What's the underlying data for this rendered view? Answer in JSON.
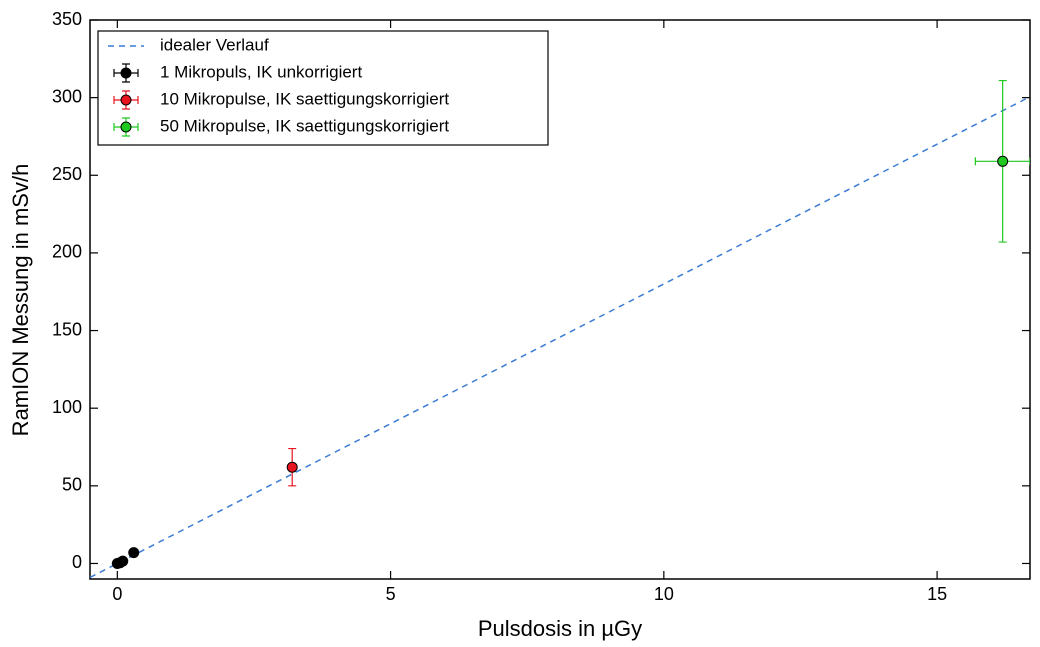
{
  "chart_data": {
    "type": "scatter",
    "x_label": "Pulsdosis in µGy",
    "y_label": "RamION Messung in mSv/h",
    "xlim": [
      -0.5,
      16.7
    ],
    "ylim": [
      -10,
      350
    ],
    "xticks": [
      0,
      5,
      10,
      15
    ],
    "yticks": [
      0,
      50,
      100,
      150,
      200,
      250,
      300,
      350
    ],
    "legend": "upper left",
    "series": [
      {
        "name": "idealer Verlauf",
        "type": "line",
        "color": "#3a7bd5",
        "x": [
          -0.5,
          16.7
        ],
        "values": [
          -9,
          300.6
        ]
      },
      {
        "name": "1 Mikropuls, IK unkorrigiert",
        "type": "scatter",
        "color": "#000000",
        "x": [
          0,
          0.05,
          0.1,
          0.3
        ],
        "values": [
          0,
          0.5,
          1.5,
          7
        ],
        "yerr": [
          0.5,
          0.5,
          0.5,
          1
        ]
      },
      {
        "name": "10 Mikropulse, IK saettigungskorrigiert",
        "type": "scatter",
        "color": "#e8141e",
        "x": [
          3.2
        ],
        "values": [
          62
        ],
        "yerr": [
          12
        ]
      },
      {
        "name": "50 Mikropulse, IK saettigungskorrigiert",
        "type": "scatter",
        "color": "#1ec81e",
        "x": [
          16.2
        ],
        "values": [
          259
        ],
        "yerr": [
          52
        ],
        "xerr": [
          0.5
        ]
      }
    ]
  }
}
